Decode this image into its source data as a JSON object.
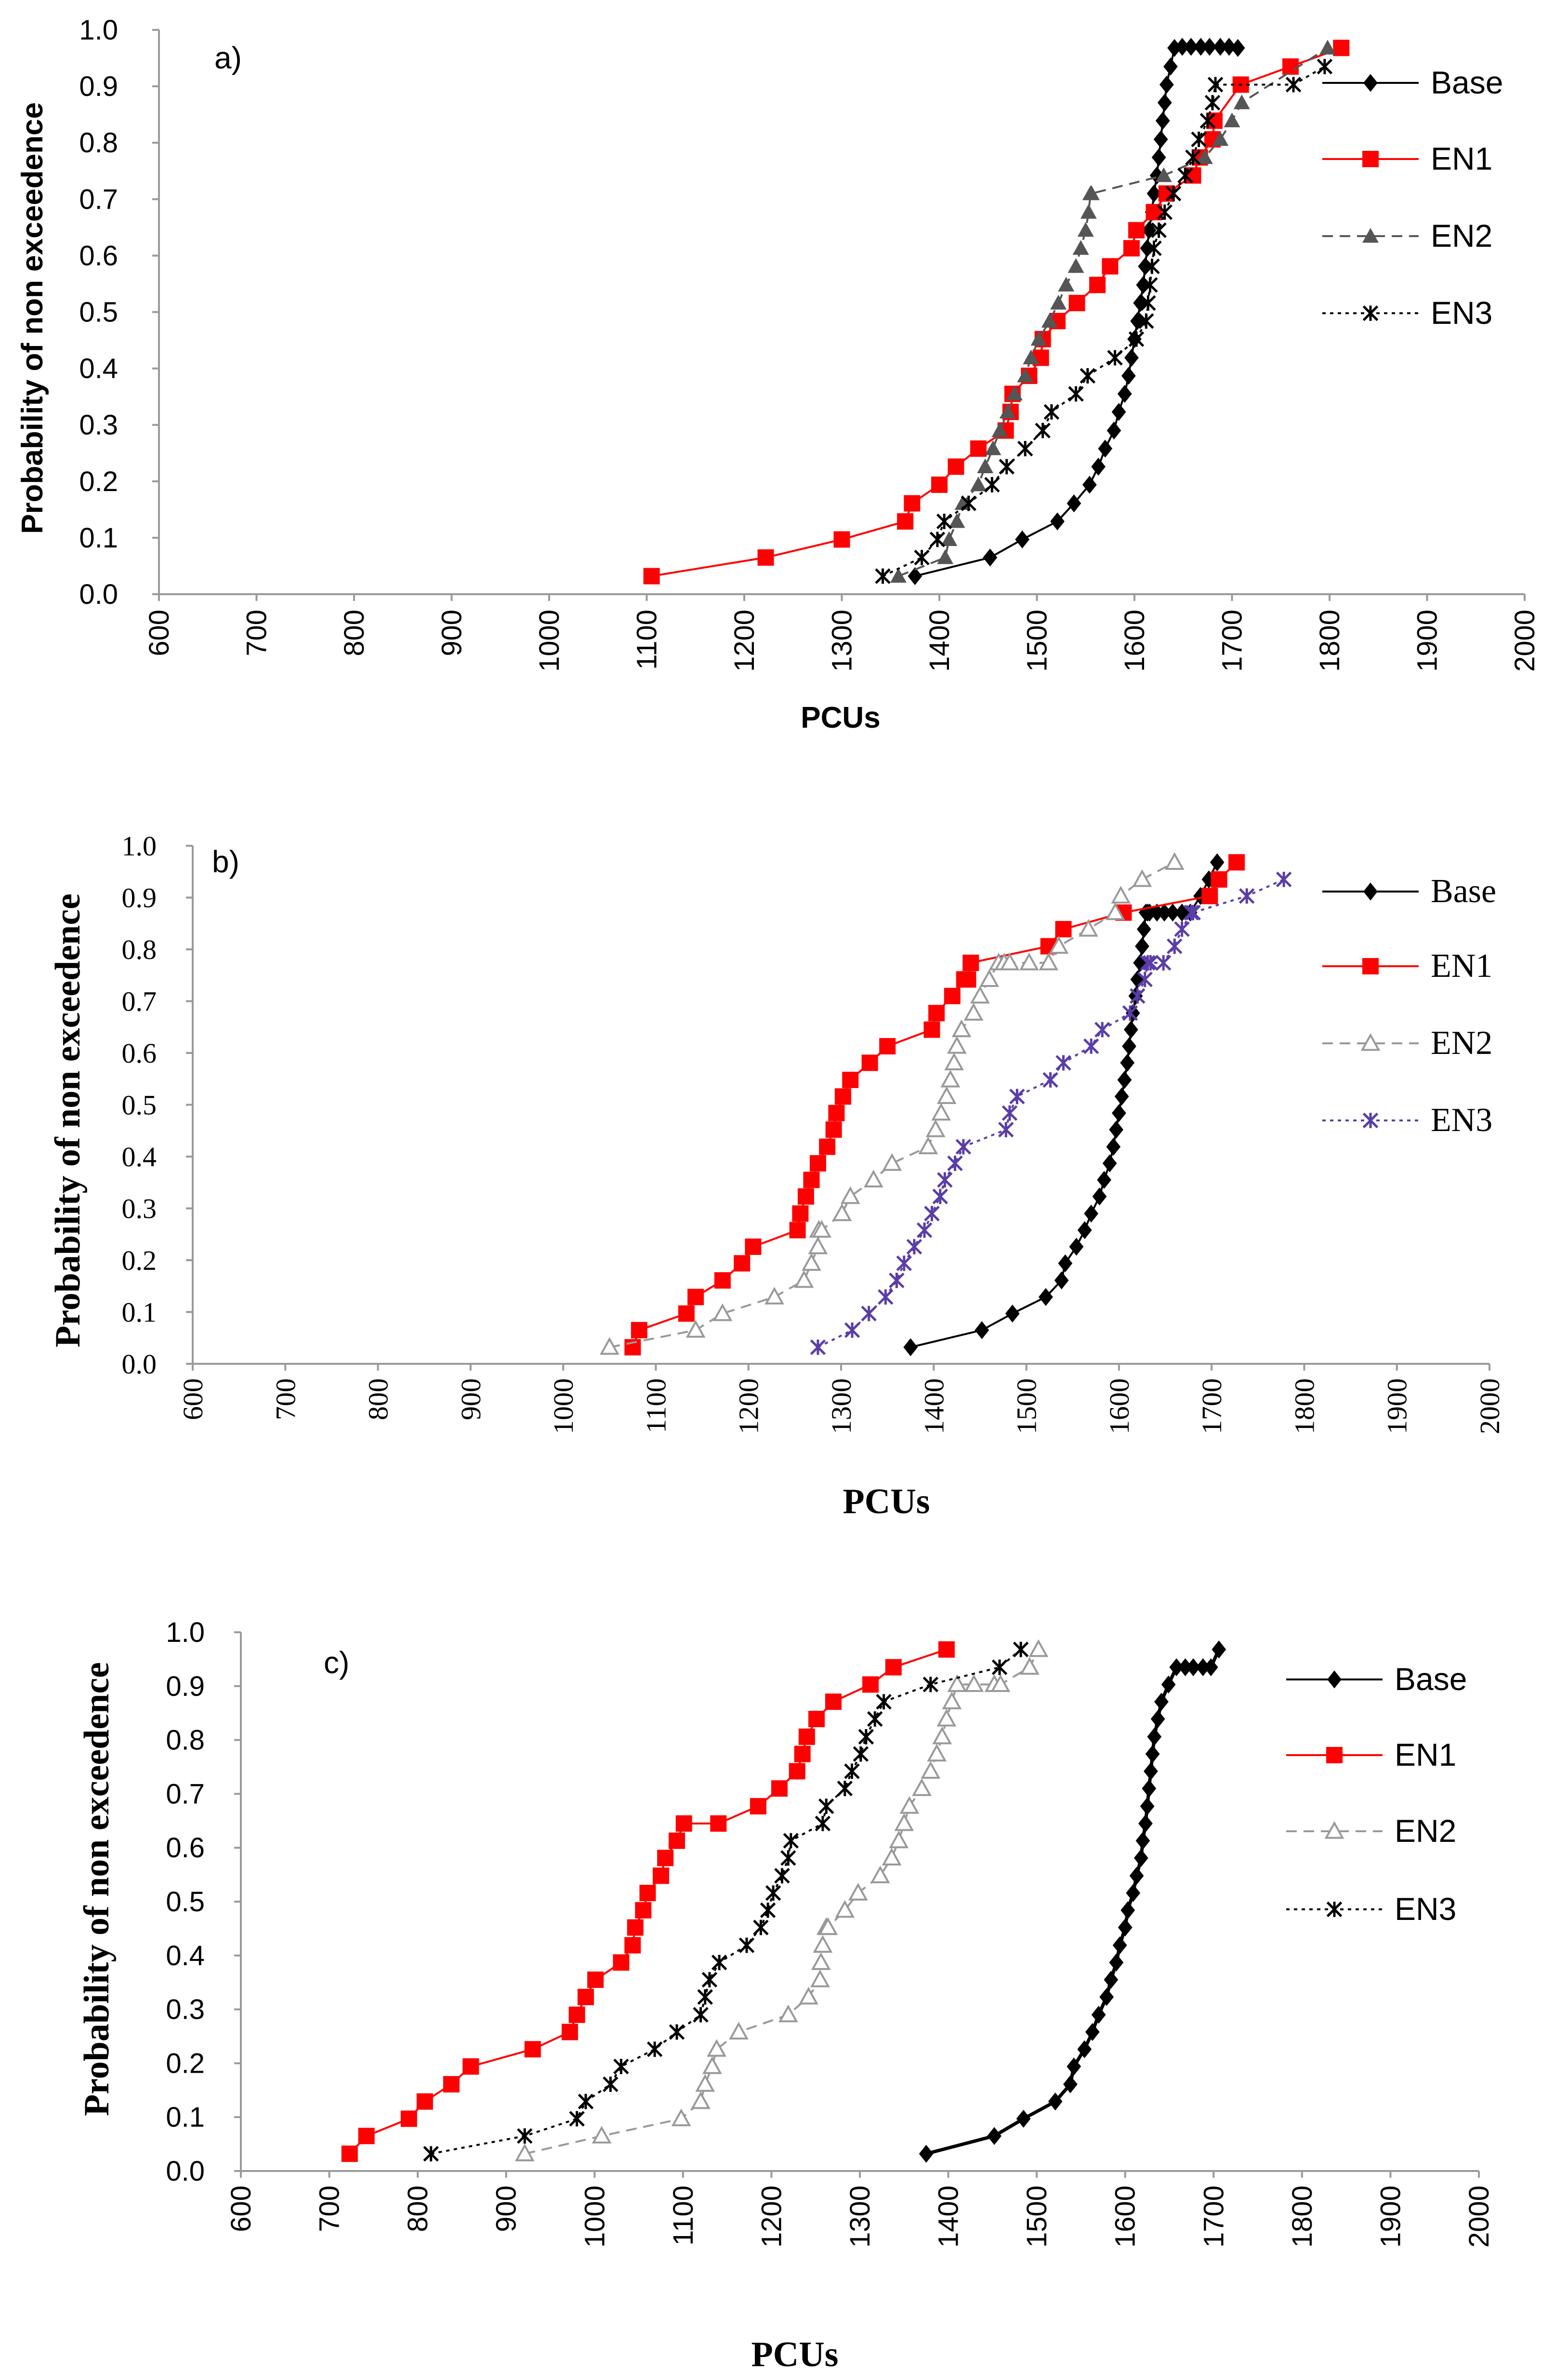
{
  "chart_data": [
    {
      "panel": "a)",
      "type": "line",
      "title": "",
      "xlabel": "PCUs",
      "ylabel": "Probability of non exceedence",
      "xlim": [
        600,
        2000
      ],
      "ylim": [
        0,
        1.0
      ],
      "x_ticks": [
        "600",
        "700",
        "800",
        "900",
        "1000",
        "1100",
        "1200",
        "1300",
        "1400",
        "1500",
        "1600",
        "1700",
        "1800",
        "1900",
        "2000"
      ],
      "y_ticks": [
        "0.0",
        "0.1",
        "0.2",
        "0.3",
        "0.4",
        "0.5",
        "0.6",
        "0.7",
        "0.8",
        "0.9",
        "1.0"
      ],
      "series": [
        {
          "name": "Base",
          "color": "#000000",
          "marker": "diamond",
          "dash": "solid",
          "x": [
            1375,
            1452,
            1485,
            1521,
            1538,
            1554,
            1563,
            1570,
            1579,
            1584,
            1590,
            1594,
            1597,
            1600,
            1603,
            1606,
            1609,
            1611,
            1613,
            1615,
            1618,
            1620,
            1623,
            1625,
            1627,
            1629,
            1631,
            1633,
            1637,
            1641,
            1649,
            1658,
            1668,
            1677,
            1688,
            1697,
            1706
          ],
          "y": [
            0.032,
            0.065,
            0.097,
            0.129,
            0.161,
            0.194,
            0.226,
            0.258,
            0.29,
            0.323,
            0.355,
            0.387,
            0.419,
            0.452,
            0.484,
            0.516,
            0.548,
            0.581,
            0.613,
            0.645,
            0.677,
            0.71,
            0.742,
            0.774,
            0.806,
            0.839,
            0.871,
            0.903,
            0.935,
            0.968,
            0.97,
            0.97,
            0.97,
            0.97,
            0.97,
            0.97,
            0.968
          ]
        },
        {
          "name": "EN1",
          "color": "#ff0000",
          "marker": "square",
          "dash": "solid",
          "x": [
            1105,
            1222,
            1300,
            1365,
            1372,
            1400,
            1417,
            1440,
            1468,
            1473,
            1475,
            1492,
            1504,
            1506,
            1521,
            1541,
            1562,
            1575,
            1597,
            1602,
            1620,
            1633,
            1660,
            1667,
            1680,
            1682,
            1709,
            1760,
            1812
          ],
          "y": [
            0.032,
            0.065,
            0.097,
            0.129,
            0.161,
            0.194,
            0.226,
            0.258,
            0.29,
            0.323,
            0.355,
            0.387,
            0.419,
            0.452,
            0.484,
            0.516,
            0.548,
            0.581,
            0.613,
            0.645,
            0.677,
            0.71,
            0.742,
            0.774,
            0.806,
            0.839,
            0.903,
            0.935,
            0.968
          ]
        },
        {
          "name": "EN2",
          "color": "#555555",
          "marker": "triangle",
          "dash": "dashed",
          "x": [
            1358,
            1406,
            1410,
            1418,
            1424,
            1440,
            1447,
            1455,
            1462,
            1470,
            1477,
            1488,
            1494,
            1502,
            1513,
            1522,
            1530,
            1540,
            1545,
            1550,
            1553,
            1555,
            1556,
            1630,
            1672,
            1688,
            1700,
            1710,
            1798
          ],
          "y": [
            0.032,
            0.065,
            0.097,
            0.129,
            0.161,
            0.194,
            0.226,
            0.258,
            0.29,
            0.323,
            0.355,
            0.387,
            0.419,
            0.452,
            0.484,
            0.516,
            0.548,
            0.581,
            0.613,
            0.645,
            0.677,
            0.71,
            0.71,
            0.742,
            0.774,
            0.806,
            0.839,
            0.871,
            0.968
          ]
        },
        {
          "name": "EN3",
          "color": "#000000",
          "marker": "cross",
          "dash": "dotted",
          "x": [
            1342,
            1382,
            1398,
            1405,
            1430,
            1454,
            1469,
            1488,
            1506,
            1515,
            1540,
            1552,
            1580,
            1602,
            1612,
            1614,
            1616,
            1618,
            1620,
            1625,
            1631,
            1640,
            1652,
            1660,
            1666,
            1675,
            1680,
            1683,
            1763,
            1795
          ],
          "y": [
            0.032,
            0.065,
            0.097,
            0.129,
            0.161,
            0.194,
            0.226,
            0.258,
            0.29,
            0.323,
            0.355,
            0.387,
            0.419,
            0.452,
            0.484,
            0.516,
            0.548,
            0.581,
            0.613,
            0.645,
            0.677,
            0.71,
            0.742,
            0.774,
            0.806,
            0.839,
            0.871,
            0.903,
            0.903,
            0.935
          ]
        }
      ]
    },
    {
      "panel": "b)",
      "type": "line",
      "title": "",
      "xlabel": "PCUs",
      "ylabel": "Probability of non exceedence",
      "xlim": [
        600,
        2000
      ],
      "ylim": [
        0,
        1.0
      ],
      "x_ticks": [
        "600",
        "700",
        "800",
        "900",
        "1000",
        "1100",
        "1200",
        "1300",
        "1400",
        "1500",
        "1600",
        "1700",
        "1800",
        "1900",
        "2000"
      ],
      "y_ticks": [
        "0.0",
        "0.1",
        "0.2",
        "0.3",
        "0.4",
        "0.5",
        "0.6",
        "0.7",
        "0.8",
        "0.9",
        "1.0"
      ],
      "series": [
        {
          "name": "Base",
          "color": "#000000",
          "marker": "diamond",
          "dash": "solid",
          "x": [
            1375,
            1452,
            1485,
            1521,
            1538,
            1542,
            1554,
            1563,
            1570,
            1579,
            1584,
            1590,
            1594,
            1597,
            1600,
            1603,
            1606,
            1609,
            1611,
            1613,
            1615,
            1618,
            1620,
            1623,
            1625,
            1627,
            1629,
            1631,
            1633,
            1641,
            1649,
            1658,
            1668,
            1677,
            1688,
            1697,
            1706
          ],
          "y": [
            0.032,
            0.065,
            0.097,
            0.129,
            0.161,
            0.194,
            0.226,
            0.258,
            0.29,
            0.323,
            0.355,
            0.387,
            0.419,
            0.452,
            0.484,
            0.516,
            0.548,
            0.581,
            0.613,
            0.645,
            0.677,
            0.71,
            0.742,
            0.774,
            0.806,
            0.839,
            0.871,
            0.871,
            0.871,
            0.871,
            0.871,
            0.871,
            0.871,
            0.871,
            0.903,
            0.935,
            0.968
          ]
        },
        {
          "name": "EN1",
          "color": "#ff0000",
          "marker": "square",
          "dash": "solid",
          "x": [
            1075,
            1082,
            1133,
            1143,
            1172,
            1193,
            1205,
            1253,
            1256,
            1262,
            1268,
            1275,
            1285,
            1292,
            1295,
            1302,
            1310,
            1331,
            1350,
            1398,
            1403,
            1420,
            1433,
            1437,
            1440,
            1524,
            1540,
            1605,
            1698,
            1708,
            1727
          ],
          "y": [
            0.032,
            0.065,
            0.097,
            0.129,
            0.161,
            0.194,
            0.226,
            0.258,
            0.29,
            0.323,
            0.355,
            0.387,
            0.419,
            0.452,
            0.484,
            0.516,
            0.548,
            0.581,
            0.613,
            0.645,
            0.677,
            0.71,
            0.742,
            0.742,
            0.774,
            0.806,
            0.839,
            0.871,
            0.903,
            0.935,
            0.968
          ]
        },
        {
          "name": "EN2",
          "color": "#999999",
          "marker": "triangle-open",
          "dash": "dashed",
          "x": [
            1050,
            1143,
            1172,
            1228,
            1260,
            1268,
            1275,
            1276,
            1279,
            1301,
            1310,
            1335,
            1355,
            1394,
            1402,
            1408,
            1414,
            1418,
            1422,
            1425,
            1430,
            1443,
            1450,
            1460,
            1470,
            1476,
            1482,
            1503,
            1524,
            1535,
            1567,
            1596,
            1602,
            1625,
            1660
          ],
          "y": [
            0.032,
            0.065,
            0.097,
            0.129,
            0.161,
            0.194,
            0.226,
            0.258,
            0.258,
            0.29,
            0.323,
            0.355,
            0.387,
            0.419,
            0.452,
            0.484,
            0.516,
            0.548,
            0.581,
            0.613,
            0.645,
            0.677,
            0.71,
            0.742,
            0.774,
            0.774,
            0.774,
            0.774,
            0.774,
            0.806,
            0.839,
            0.871,
            0.903,
            0.935,
            0.968
          ]
        },
        {
          "name": "EN3",
          "color": "#5a3da8",
          "marker": "cross",
          "dash": "dotted",
          "x": [
            1275,
            1312,
            1330,
            1348,
            1360,
            1368,
            1379,
            1390,
            1398,
            1407,
            1412,
            1423,
            1432,
            1478,
            1482,
            1490,
            1526,
            1540,
            1570,
            1582,
            1612,
            1620,
            1628,
            1631,
            1634,
            1648,
            1660,
            1668,
            1678,
            1680,
            1738,
            1778
          ],
          "y": [
            0.032,
            0.065,
            0.097,
            0.129,
            0.161,
            0.194,
            0.226,
            0.258,
            0.29,
            0.323,
            0.355,
            0.387,
            0.419,
            0.452,
            0.484,
            0.516,
            0.548,
            0.581,
            0.613,
            0.645,
            0.677,
            0.71,
            0.742,
            0.774,
            0.774,
            0.774,
            0.806,
            0.839,
            0.871,
            0.871,
            0.903,
            0.935
          ]
        }
      ]
    },
    {
      "panel": "c)",
      "type": "line",
      "title": "",
      "xlabel": "PCUs",
      "ylabel": "Probability of non  exceedence",
      "xlim": [
        600,
        2000
      ],
      "ylim": [
        0,
        1.0
      ],
      "x_ticks": [
        "600",
        "700",
        "800",
        "900",
        "1000",
        "1100",
        "1200",
        "1300",
        "1400",
        "1500",
        "1600",
        "1700",
        "1800",
        "1900",
        "2000"
      ],
      "y_ticks": [
        "0.0",
        "0.1",
        "0.2",
        "0.3",
        "0.4",
        "0.5",
        "0.6",
        "0.7",
        "0.8",
        "0.9",
        "1.0"
      ],
      "series": [
        {
          "name": "Base",
          "color": "#000000",
          "marker": "diamond",
          "dash": "solid",
          "x": [
            1375,
            1452,
            1485,
            1521,
            1538,
            1542,
            1554,
            1563,
            1570,
            1579,
            1584,
            1590,
            1594,
            1600,
            1603,
            1609,
            1613,
            1618,
            1620,
            1623,
            1625,
            1627,
            1629,
            1631,
            1633,
            1637,
            1641,
            1649,
            1658,
            1668,
            1677,
            1688,
            1697,
            1706
          ],
          "y": [
            0.032,
            0.065,
            0.097,
            0.129,
            0.161,
            0.194,
            0.226,
            0.258,
            0.29,
            0.323,
            0.355,
            0.387,
            0.419,
            0.452,
            0.484,
            0.516,
            0.548,
            0.581,
            0.613,
            0.645,
            0.677,
            0.71,
            0.742,
            0.774,
            0.806,
            0.839,
            0.871,
            0.903,
            0.935,
            0.935,
            0.935,
            0.935,
            0.935,
            0.968
          ]
        },
        {
          "name": "EN1",
          "color": "#ff0000",
          "marker": "square",
          "dash": "solid",
          "x": [
            723,
            742,
            790,
            808,
            838,
            860,
            930,
            972,
            980,
            990,
            1001,
            1030,
            1043,
            1046,
            1055,
            1060,
            1075,
            1080,
            1093,
            1101,
            1140,
            1185,
            1209,
            1229,
            1235,
            1240,
            1251,
            1270,
            1312,
            1338,
            1398
          ],
          "y": [
            0.032,
            0.065,
            0.097,
            0.129,
            0.161,
            0.194,
            0.226,
            0.258,
            0.29,
            0.323,
            0.355,
            0.387,
            0.419,
            0.452,
            0.484,
            0.516,
            0.548,
            0.581,
            0.613,
            0.645,
            0.645,
            0.677,
            0.71,
            0.742,
            0.774,
            0.806,
            0.839,
            0.871,
            0.903,
            0.935,
            0.968
          ]
        },
        {
          "name": "EN2",
          "color": "#999999",
          "marker": "triangle-open",
          "dash": "dashed",
          "x": [
            921,
            1008,
            1098,
            1120,
            1125,
            1133,
            1138,
            1163,
            1219,
            1242,
            1255,
            1256,
            1258,
            1262,
            1264,
            1283,
            1298,
            1323,
            1336,
            1344,
            1350,
            1356,
            1370,
            1380,
            1387,
            1393,
            1398,
            1404,
            1410,
            1429,
            1452,
            1459,
            1492,
            1502
          ],
          "y": [
            0.032,
            0.065,
            0.097,
            0.129,
            0.161,
            0.194,
            0.226,
            0.258,
            0.29,
            0.323,
            0.355,
            0.387,
            0.419,
            0.452,
            0.452,
            0.484,
            0.516,
            0.548,
            0.581,
            0.613,
            0.645,
            0.677,
            0.71,
            0.742,
            0.774,
            0.806,
            0.839,
            0.871,
            0.903,
            0.903,
            0.903,
            0.903,
            0.935,
            0.968
          ]
        },
        {
          "name": "EN3",
          "color": "#000000",
          "marker": "cross",
          "dash": "dotted",
          "x": [
            815,
            921,
            980,
            990,
            1018,
            1030,
            1068,
            1093,
            1120,
            1125,
            1130,
            1141,
            1172,
            1188,
            1196,
            1202,
            1212,
            1219,
            1222,
            1258,
            1262,
            1283,
            1291,
            1301,
            1307,
            1317,
            1327,
            1380,
            1458,
            1482
          ],
          "y": [
            0.032,
            0.065,
            0.097,
            0.129,
            0.161,
            0.194,
            0.226,
            0.258,
            0.29,
            0.323,
            0.355,
            0.387,
            0.419,
            0.452,
            0.484,
            0.516,
            0.548,
            0.581,
            0.613,
            0.645,
            0.677,
            0.71,
            0.742,
            0.774,
            0.806,
            0.839,
            0.871,
            0.903,
            0.935,
            0.968
          ]
        }
      ]
    }
  ]
}
